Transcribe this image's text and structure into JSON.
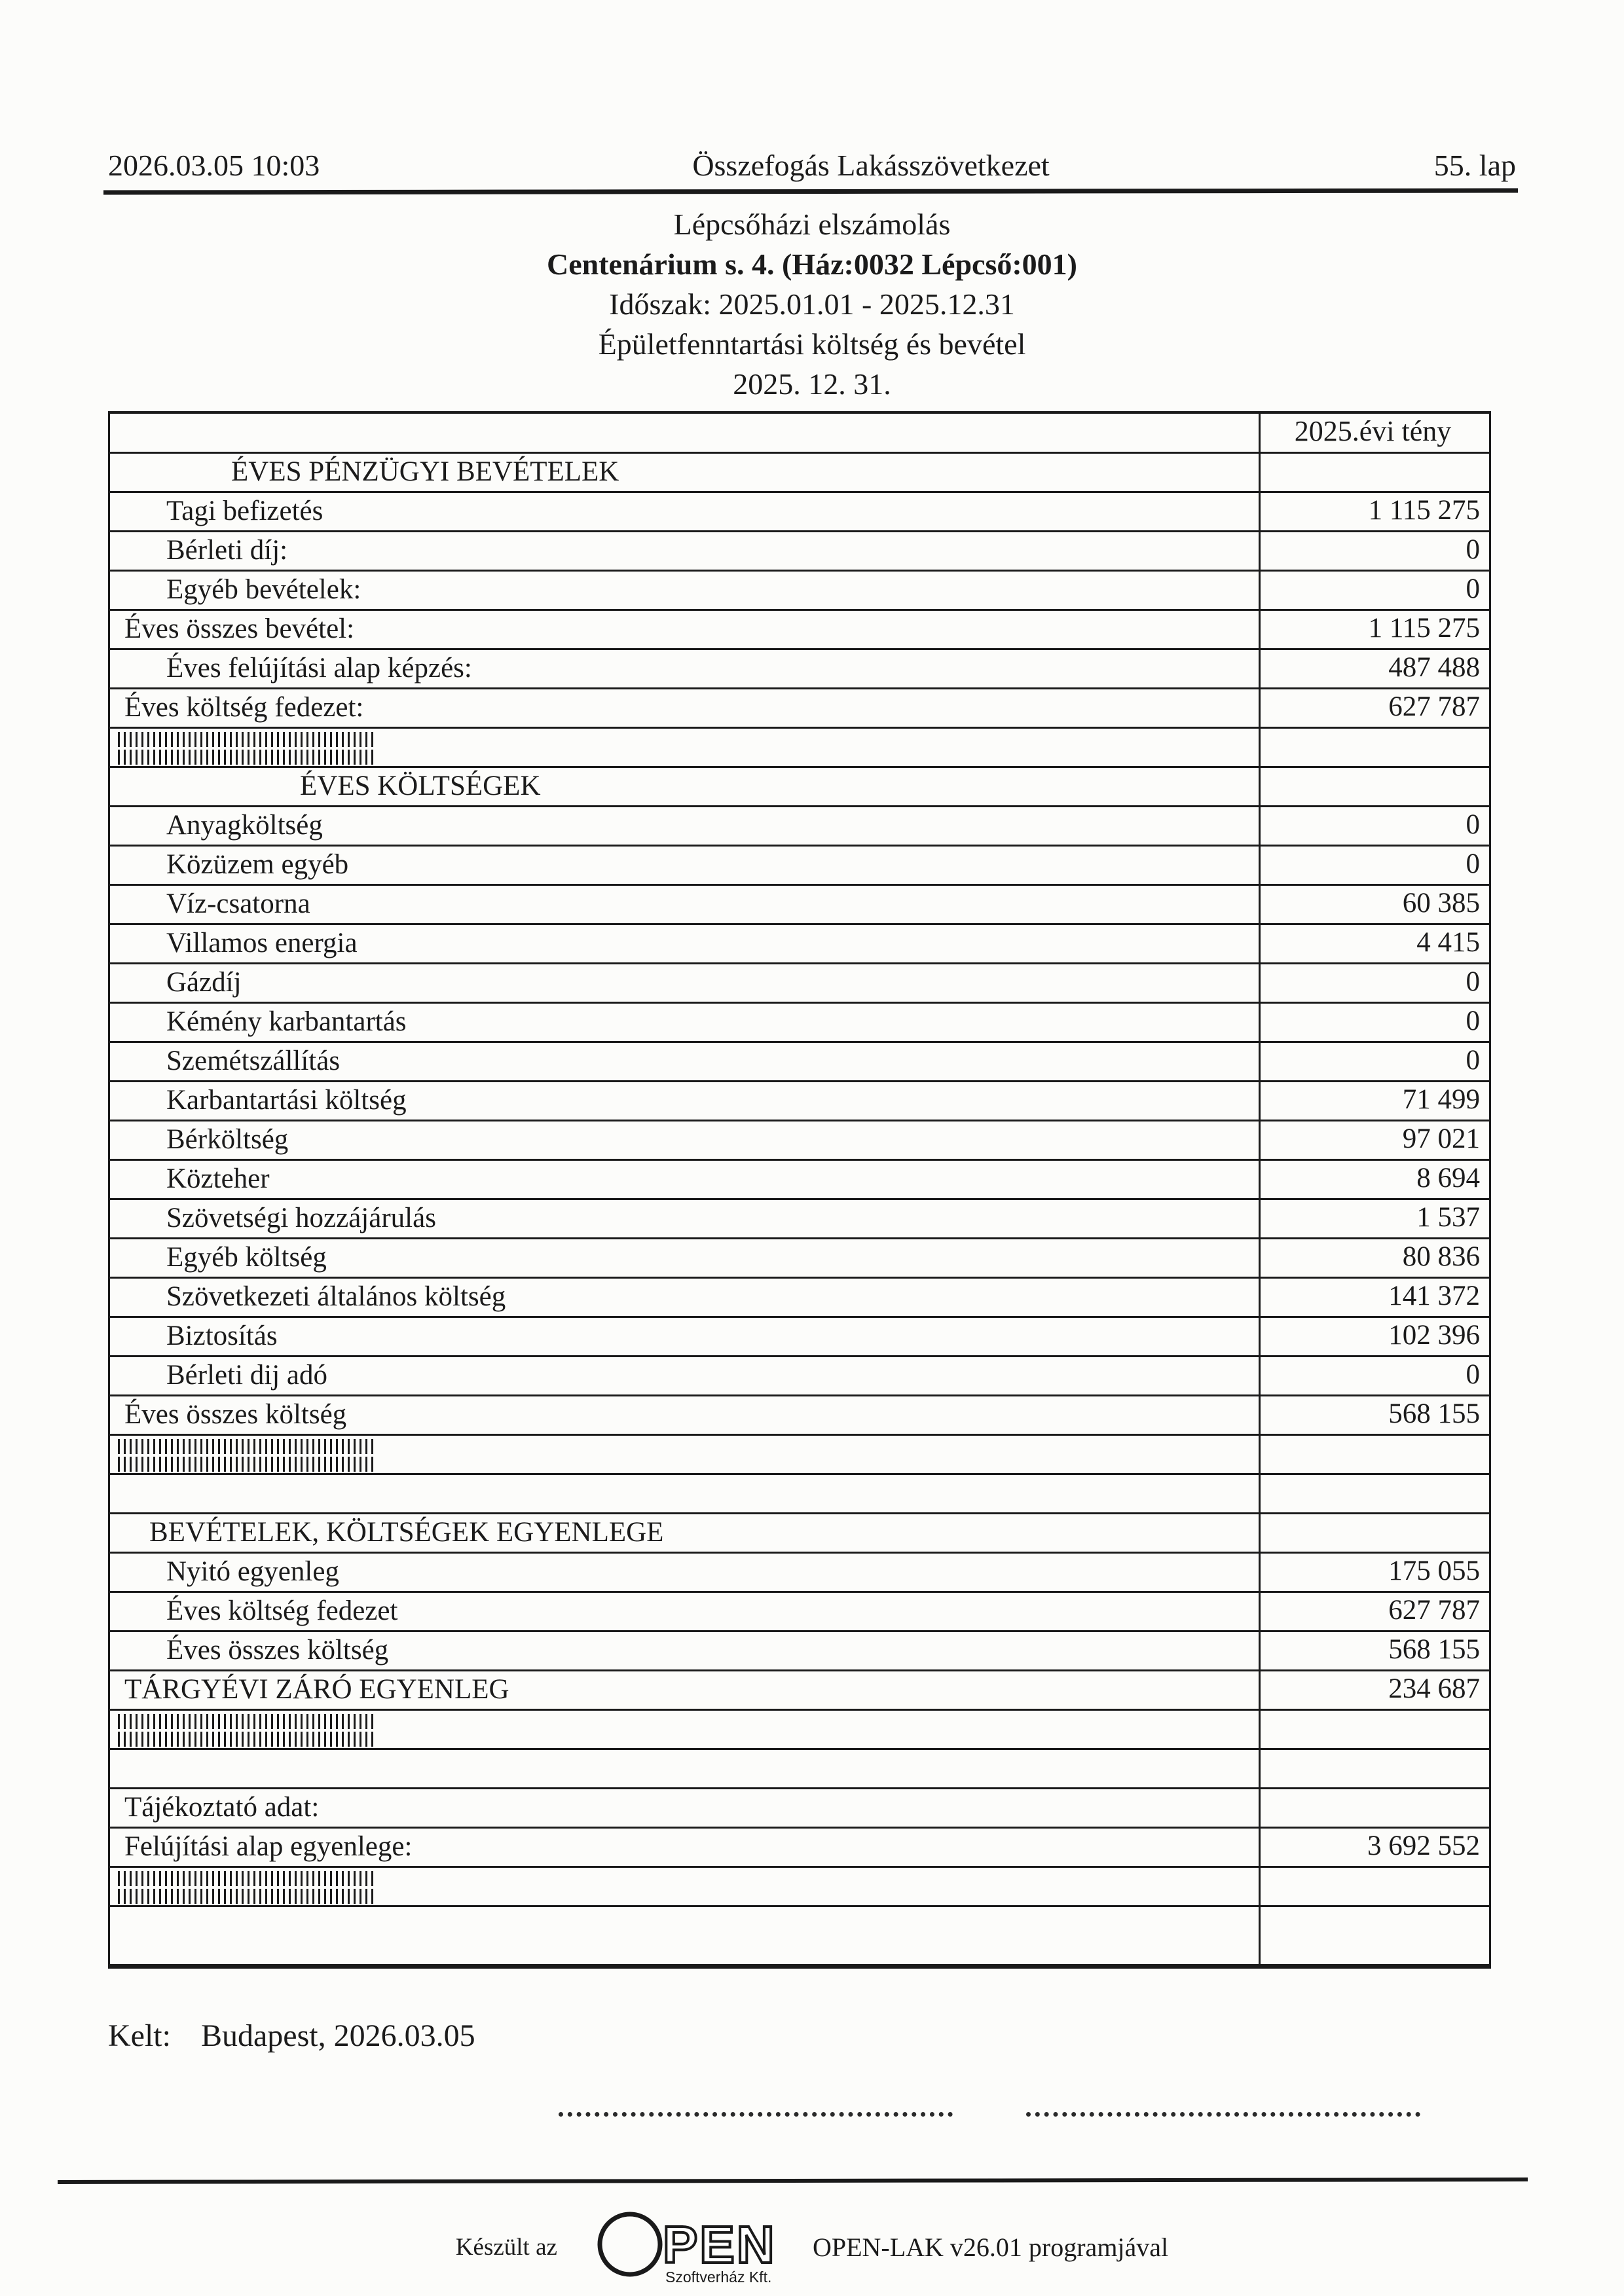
{
  "header": {
    "datetime": "2026.03.05 10:03",
    "organization": "Összefogás Lakásszövetkezet",
    "page_label": "55. lap"
  },
  "title_block": {
    "report_title": "Lépcsőházi elszámolás",
    "building": "Centenárium s. 4. (Ház:0032 Lépcső:001)",
    "period": "Időszak: 2025.01.01 - 2025.12.31",
    "report_type": "Épületfenntartási költség és bevétel",
    "as_of_date": "2025. 12. 31."
  },
  "table": {
    "value_column_header": "2025.évi tény",
    "rows": [
      {
        "type": "section",
        "label": "ÉVES PÉNZÜGYI BEVÉTELEK",
        "indent": 2
      },
      {
        "type": "data",
        "label": "Tagi  befizetés",
        "value": "1 115 275",
        "indent": 1
      },
      {
        "type": "data",
        "label": "Bérleti díj:",
        "value": "0",
        "indent": 1
      },
      {
        "type": "data",
        "label": "Egyéb bevételek:",
        "value": "0",
        "indent": 1
      },
      {
        "type": "data",
        "label": "Éves összes bevétel:",
        "value": "1 115 275",
        "indent": 0
      },
      {
        "type": "data",
        "label": "Éves felújítási alap képzés:",
        "value": "487 488",
        "indent": 1
      },
      {
        "type": "data",
        "label": "Éves költség fedezet:",
        "value": "627 787",
        "indent": 0
      },
      {
        "type": "hatch"
      },
      {
        "type": "section",
        "label": "ÉVES KÖLTSÉGEK",
        "indent": 3
      },
      {
        "type": "data",
        "label": "Anyagköltség",
        "value": "0",
        "indent": 1
      },
      {
        "type": "data",
        "label": "Közüzem egyéb",
        "value": "0",
        "indent": 1
      },
      {
        "type": "data",
        "label": "Víz-csatorna",
        "value": "60 385",
        "indent": 1
      },
      {
        "type": "data",
        "label": "Villamos energia",
        "value": "4 415",
        "indent": 1
      },
      {
        "type": "data",
        "label": "Gázdíj",
        "value": "0",
        "indent": 1
      },
      {
        "type": "data",
        "label": "Kémény karbantartás",
        "value": "0",
        "indent": 1
      },
      {
        "type": "data",
        "label": "Szemétszállítás",
        "value": "0",
        "indent": 1
      },
      {
        "type": "data",
        "label": "Karbantartási költség",
        "value": "71 499",
        "indent": 1
      },
      {
        "type": "data",
        "label": "Bérköltség",
        "value": "97 021",
        "indent": 1
      },
      {
        "type": "data",
        "label": "Közteher",
        "value": "8 694",
        "indent": 1
      },
      {
        "type": "data",
        "label": "Szövetségi hozzájárulás",
        "value": "1 537",
        "indent": 1
      },
      {
        "type": "data",
        "label": "Egyéb költség",
        "value": "80 836",
        "indent": 1
      },
      {
        "type": "data",
        "label": "Szövetkezeti általános költség",
        "value": "141 372",
        "indent": 1
      },
      {
        "type": "data",
        "label": "Biztosítás",
        "value": "102 396",
        "indent": 1
      },
      {
        "type": "data",
        "label": "Bérleti dij adó",
        "value": "0",
        "indent": 1
      },
      {
        "type": "data",
        "label": "Éves összes költség",
        "value": "568 155",
        "indent": 0
      },
      {
        "type": "hatch"
      },
      {
        "type": "empty"
      },
      {
        "type": "section",
        "label": "BEVÉTELEK, KÖLTSÉGEK EGYENLEGE",
        "indent": 4
      },
      {
        "type": "data",
        "label": "Nyitó egyenleg",
        "value": "175 055",
        "indent": 1
      },
      {
        "type": "data",
        "label": "Éves költség fedezet",
        "value": "627 787",
        "indent": 1
      },
      {
        "type": "data",
        "label": "Éves összes költség",
        "value": "568 155",
        "indent": 1
      },
      {
        "type": "data",
        "label": "TÁRGYÉVI ZÁRÓ EGYENLEG",
        "value": "234 687",
        "indent": 0
      },
      {
        "type": "hatch"
      },
      {
        "type": "empty"
      },
      {
        "type": "data",
        "label": "Tájékoztató adat:",
        "value": "",
        "indent": 0
      },
      {
        "type": "data",
        "label": "Felújítási alap egyenlege:",
        "value": "3 692 552",
        "indent": 0
      },
      {
        "type": "hatch"
      },
      {
        "type": "empty_tall"
      }
    ]
  },
  "footer": {
    "kelt_label": "Kelt:",
    "kelt_value": "Budapest, 2026.03.05",
    "made_with_prefix": "Készült az",
    "logo_pen": "PEN",
    "logo_sub": "Szoftverház Kft.",
    "made_with_suffix": "OPEN-LAK v26.01 programjával"
  }
}
